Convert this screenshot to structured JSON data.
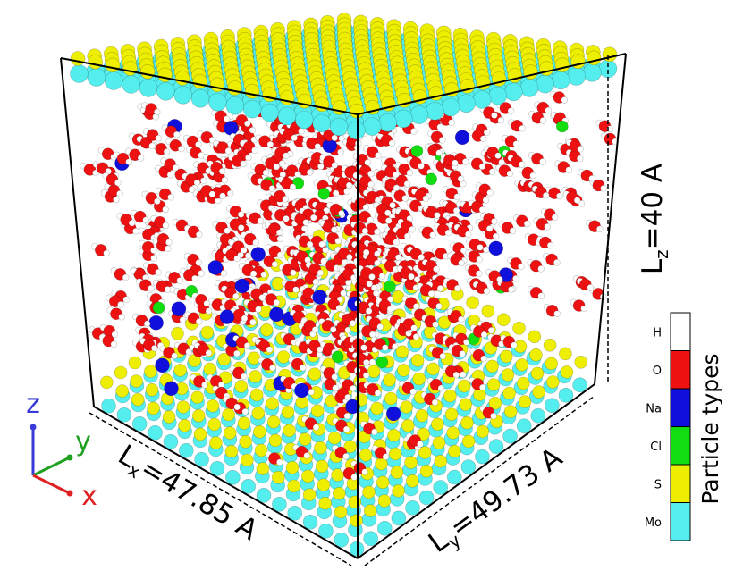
{
  "dimensions": [
    {
      "main": "L",
      "sub": "x",
      "rest": "=47.85 A"
    },
    {
      "main": "L",
      "sub": "y",
      "rest": "=49.73 A"
    },
    {
      "main": "L",
      "sub": "z",
      "rest": "=40 A"
    }
  ],
  "axes": [
    {
      "label": "z",
      "color": "#3a3ad8"
    },
    {
      "label": "y",
      "color": "#22a022"
    },
    {
      "label": "x",
      "color": "#e02020"
    }
  ],
  "legend": {
    "title": "Particle types",
    "items": [
      {
        "label": "H",
        "color": "#ffffff"
      },
      {
        "label": "O",
        "color": "#ee1111"
      },
      {
        "label": "Na",
        "color": "#1010dd"
      },
      {
        "label": "Cl",
        "color": "#11dd11"
      },
      {
        "label": "S",
        "color": "#eeee00"
      },
      {
        "label": "Mo",
        "color": "#55eeee"
      }
    ]
  }
}
